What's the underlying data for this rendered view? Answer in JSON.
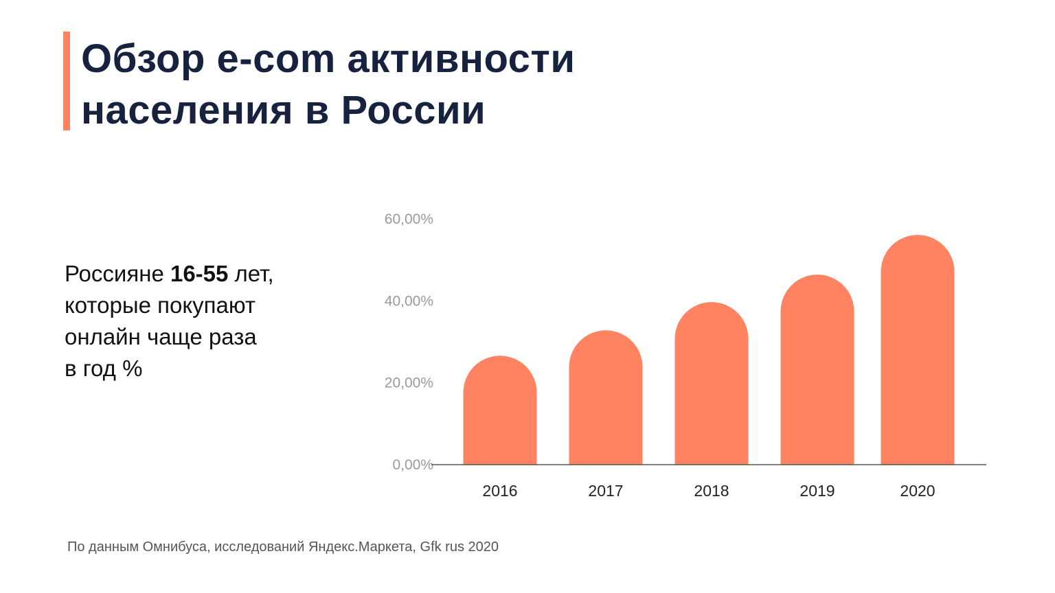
{
  "title": {
    "line1": "Обзор e-com активности",
    "line2": "населения в России"
  },
  "description": {
    "prefix": "Россияне ",
    "bold": "16-55",
    "suffix": " лет,",
    "line2": "которые покупают",
    "line3": "онлайн чаще раза",
    "line4": "в год %"
  },
  "source": "По данным Омнибуса, исследований Яндекс.Маркета,  Gfk rus 2020",
  "colors": {
    "bar": "#ff8360",
    "accent": "#ff8360",
    "title": "#17223f"
  },
  "chart_data": {
    "type": "bar",
    "title": "",
    "xlabel": "",
    "ylabel": "",
    "categories": [
      "2016",
      "2017",
      "2018",
      "2019",
      "2020"
    ],
    "values": [
      26.6,
      32.8,
      39.7,
      46.4,
      56.1
    ],
    "unit": "%",
    "ylim": [
      0,
      60
    ],
    "yticks": [
      0,
      20,
      40,
      60
    ],
    "ytick_labels": [
      "0,00%",
      "20,00%",
      "40,00%",
      "60,00%"
    ],
    "grid": false,
    "legend": "none"
  }
}
